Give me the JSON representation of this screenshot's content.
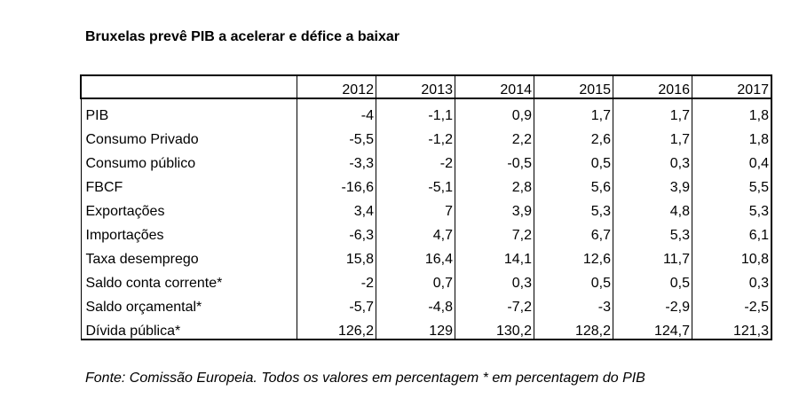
{
  "title": "Bruxelas prevê PIB a acelerar e défice a baixar",
  "table": {
    "years": [
      "2012",
      "2013",
      "2014",
      "2015",
      "2016",
      "2017"
    ],
    "rows": [
      {
        "label": "PIB",
        "values": [
          "-4",
          "-1,1",
          "0,9",
          "1,7",
          "1,7",
          "1,8"
        ]
      },
      {
        "label": "Consumo Privado",
        "values": [
          "-5,5",
          "-1,2",
          "2,2",
          "2,6",
          "1,7",
          "1,8"
        ]
      },
      {
        "label": "Consumo público",
        "values": [
          "-3,3",
          "-2",
          "-0,5",
          "0,5",
          "0,3",
          "0,4"
        ]
      },
      {
        "label": "FBCF",
        "values": [
          "-16,6",
          "-5,1",
          "2,8",
          "5,6",
          "3,9",
          "5,5"
        ]
      },
      {
        "label": "Exportações",
        "values": [
          "3,4",
          "7",
          "3,9",
          "5,3",
          "4,8",
          "5,3"
        ]
      },
      {
        "label": "Importações",
        "values": [
          "-6,3",
          "4,7",
          "7,2",
          "6,7",
          "5,3",
          "6,1"
        ]
      },
      {
        "label": "Taxa desemprego",
        "values": [
          "15,8",
          "16,4",
          "14,1",
          "12,6",
          "11,7",
          "10,8"
        ]
      },
      {
        "label": "Saldo conta corrente*",
        "values": [
          "-2",
          "0,7",
          "0,3",
          "0,5",
          "0,5",
          "0,3"
        ]
      },
      {
        "label": "Saldo orçamental*",
        "values": [
          "-5,7",
          "-4,8",
          "-7,2",
          "-3",
          "-2,9",
          "-2,5"
        ]
      },
      {
        "label": "Dívida pública*",
        "values": [
          "126,2",
          "129",
          "130,2",
          "128,2",
          "124,7",
          "121,3"
        ]
      }
    ]
  },
  "source": "Fonte: Comissão Europeia. Todos os valores em percentagem  * em percentagem do PIB"
}
